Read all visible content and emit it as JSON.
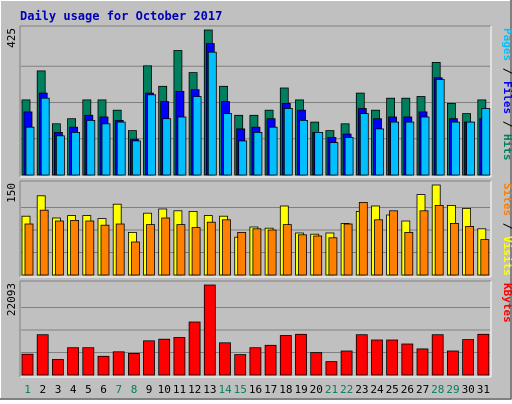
{
  "chart_data": [
    {
      "type": "bar",
      "title": "Daily usage for October 2017",
      "categories": [
        "1",
        "2",
        "3",
        "4",
        "5",
        "6",
        "7",
        "8",
        "9",
        "10",
        "11",
        "12",
        "13",
        "14",
        "15",
        "16",
        "17",
        "18",
        "19",
        "20",
        "21",
        "22",
        "23",
        "24",
        "25",
        "26",
        "27",
        "28",
        "29",
        "30",
        "31"
      ],
      "weekend_days": [
        "1",
        "7",
        "8",
        "14",
        "15",
        "21",
        "22",
        "28",
        "29"
      ],
      "ymax_label": "425",
      "ylim": [
        0,
        425
      ],
      "legend": [
        "Pages",
        "Files",
        "Hits"
      ],
      "series": [
        {
          "name": "Hits",
          "color": "#007f5f",
          "values": [
            220,
            305,
            150,
            165,
            220,
            220,
            190,
            130,
            320,
            260,
            365,
            300,
            425,
            260,
            175,
            175,
            190,
            255,
            220,
            155,
            130,
            150,
            240,
            190,
            225,
            225,
            230,
            330,
            210,
            180,
            220
          ]
        },
        {
          "name": "Files",
          "color": "#0000ff",
          "values": [
            185,
            240,
            125,
            140,
            175,
            170,
            160,
            105,
            240,
            215,
            245,
            250,
            385,
            215,
            135,
            140,
            165,
            210,
            190,
            125,
            110,
            120,
            195,
            165,
            170,
            170,
            185,
            285,
            165,
            155,
            165
          ]
        },
        {
          "name": "Pages",
          "color": "#00bfff",
          "values": [
            140,
            225,
            115,
            125,
            160,
            150,
            155,
            100,
            235,
            165,
            170,
            230,
            360,
            180,
            100,
            125,
            140,
            195,
            160,
            125,
            95,
            110,
            180,
            135,
            155,
            155,
            170,
            280,
            155,
            155,
            195
          ]
        }
      ]
    },
    {
      "type": "bar",
      "ymax_label": "150",
      "ylim": [
        0,
        150
      ],
      "legend": [
        "Sites",
        "Visits"
      ],
      "series": [
        {
          "name": "Visits",
          "color": "#ffff00",
          "values": [
            98,
            132,
            95,
            99,
            99,
            94,
            118,
            71,
            103,
            110,
            107,
            106,
            99,
            98,
            63,
            80,
            78,
            115,
            70,
            68,
            70,
            86,
            106,
            115,
            100,
            90,
            134,
            150,
            116,
            111,
            77
          ]
        },
        {
          "name": "Sites",
          "color": "#ff7f00",
          "values": [
            85,
            108,
            90,
            91,
            90,
            83,
            85,
            55,
            84,
            95,
            84,
            79,
            88,
            92,
            71,
            77,
            75,
            84,
            67,
            65,
            62,
            85,
            121,
            92,
            107,
            71,
            107,
            116,
            86,
            81,
            59
          ]
        }
      ]
    },
    {
      "type": "bar",
      "ymax_label": "22093",
      "ylim": [
        0,
        22093
      ],
      "legend": [
        "KBytes"
      ],
      "series": [
        {
          "name": "KBytes",
          "color": "#ff0000",
          "values": [
            5100,
            9900,
            3800,
            6700,
            6700,
            4600,
            5700,
            5300,
            8400,
            8800,
            9200,
            13000,
            22093,
            7900,
            5000,
            6700,
            7300,
            9700,
            10000,
            5500,
            3300,
            5900,
            9900,
            8600,
            8600,
            7600,
            6400,
            9900,
            5900,
            8700,
            10000
          ]
        }
      ]
    }
  ]
}
